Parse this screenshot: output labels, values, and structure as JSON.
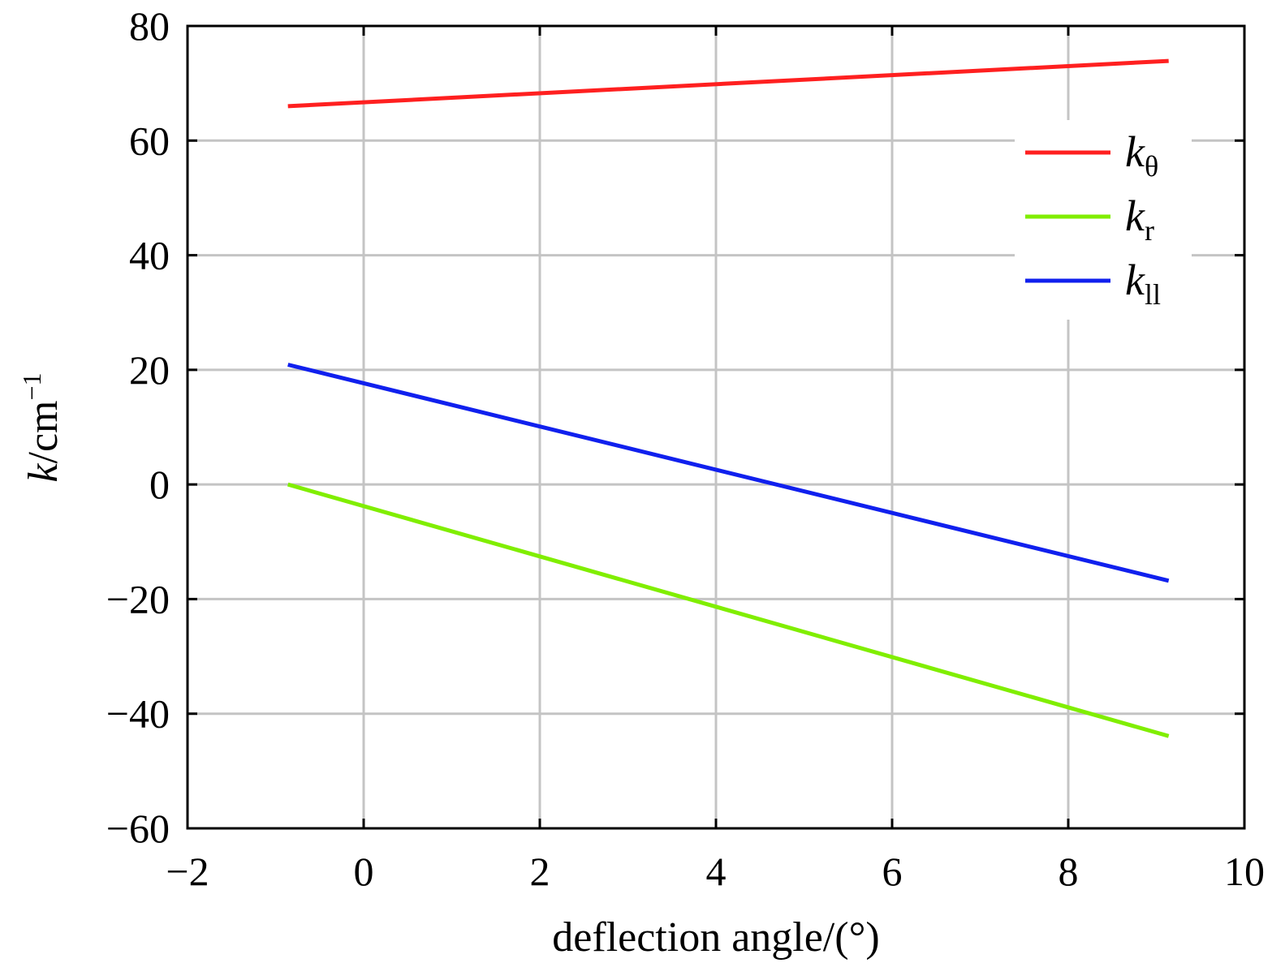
{
  "chart_data": {
    "type": "line",
    "title": "",
    "xlabel": "deflection angle/(°)",
    "ylabel": {
      "main": "k",
      "unit": "/cm",
      "sup": "−1"
    },
    "xlim": [
      -2,
      10
    ],
    "ylim": [
      -60,
      80
    ],
    "xticks": [
      -2,
      0,
      2,
      4,
      6,
      8,
      10
    ],
    "yticks": [
      -60,
      -40,
      -20,
      0,
      20,
      40,
      60,
      80
    ],
    "xtick_labels": [
      "−2",
      "0",
      "2",
      "4",
      "6",
      "8",
      "10"
    ],
    "ytick_labels": [
      "−60",
      "−40",
      "−20",
      "0",
      "20",
      "40",
      "60",
      "80"
    ],
    "grid": true,
    "legend_position": "top-right",
    "series": [
      {
        "name": "kθ",
        "base": "k",
        "sub": "θ",
        "color": "#ff2020",
        "x": [
          -0.86,
          9.14
        ],
        "y": [
          66.0,
          73.9
        ]
      },
      {
        "name": "kr",
        "base": "k",
        "sub": "r",
        "color": "#80ee00",
        "x": [
          -0.86,
          9.14
        ],
        "y": [
          0.0,
          -43.9
        ]
      },
      {
        "name": "kll",
        "base": "k",
        "sub": "ll",
        "color": "#1020ee",
        "x": [
          -0.86,
          9.14
        ],
        "y": [
          20.9,
          -16.8
        ]
      }
    ]
  }
}
